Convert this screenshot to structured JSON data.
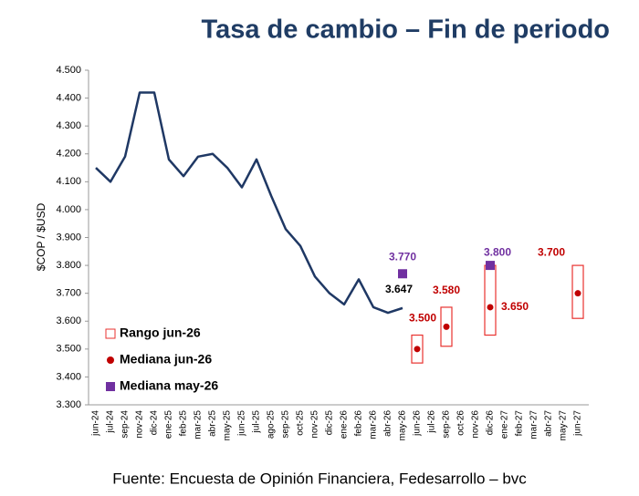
{
  "chart_data": {
    "type": "line",
    "title": "Tasa de cambio – Fin de periodo",
    "y_label": "$COP / $USD",
    "source": "Fuente: Encuesta de Opinión Financiera, Fedesarrollo – bvc",
    "categories": [
      "jun-24",
      "jul-24",
      "sep-24",
      "nov-24",
      "dic-24",
      "ene-25",
      "feb-25",
      "mar-25",
      "abr-25",
      "may-25",
      "jun-25",
      "jul-25",
      "ago-25",
      "sep-25",
      "oct-25",
      "nov-25",
      "dic-25",
      "ene-26",
      "feb-26",
      "mar-26",
      "abr-26",
      "may-26",
      "jun-26",
      "jul-26",
      "sep-26",
      "oct-26",
      "nov-26",
      "dic-26",
      "ene-27",
      "feb-27",
      "mar-27",
      "abr-27",
      "may-27",
      "jun-27"
    ],
    "ylim": [
      3300,
      4500
    ],
    "yticks": [
      {
        "value": 3300,
        "label": "3.300"
      },
      {
        "value": 3400,
        "label": "3.400"
      },
      {
        "value": 3500,
        "label": "3.500"
      },
      {
        "value": 3600,
        "label": "3.600"
      },
      {
        "value": 3700,
        "label": "3.700"
      },
      {
        "value": 3800,
        "label": "3.800"
      },
      {
        "value": 3900,
        "label": "3.900"
      },
      {
        "value": 4000,
        "label": "4.000"
      },
      {
        "value": 4100,
        "label": "4.100"
      },
      {
        "value": 4200,
        "label": "4.200"
      },
      {
        "value": 4300,
        "label": "4.300"
      },
      {
        "value": 4400,
        "label": "4.400"
      },
      {
        "value": 4500,
        "label": "4.500"
      }
    ],
    "legend": "lower left",
    "series": [
      {
        "kind": "line",
        "color": "#1f3864",
        "values": [
          4150,
          4100,
          4190,
          4420,
          4420,
          4180,
          4120,
          4190,
          4200,
          4150,
          4080,
          4180,
          4050,
          3930,
          3870,
          3760,
          3700,
          3660,
          3750,
          3650,
          3630,
          3647,
          null,
          null,
          null,
          null,
          null,
          null,
          null,
          null,
          null,
          null,
          null,
          null
        ],
        "value_labels": [
          null,
          null,
          null,
          null,
          null,
          null,
          null,
          null,
          null,
          null,
          null,
          null,
          null,
          null,
          null,
          null,
          null,
          null,
          null,
          null,
          null,
          "3.647",
          null,
          null,
          null,
          null,
          null,
          null,
          null,
          null,
          null,
          null,
          null,
          null
        ]
      },
      {
        "kind": "range",
        "name": "Rango jun-26",
        "color": "#e8322f",
        "low": [
          null,
          null,
          null,
          null,
          null,
          null,
          null,
          null,
          null,
          null,
          null,
          null,
          null,
          null,
          null,
          null,
          null,
          null,
          null,
          null,
          null,
          null,
          3450,
          null,
          3510,
          null,
          null,
          3550,
          null,
          null,
          null,
          null,
          null,
          3610
        ],
        "high": [
          null,
          null,
          null,
          null,
          null,
          null,
          null,
          null,
          null,
          null,
          null,
          null,
          null,
          null,
          null,
          null,
          null,
          null,
          null,
          null,
          null,
          null,
          3550,
          null,
          3650,
          null,
          null,
          3800,
          null,
          null,
          null,
          null,
          null,
          3800
        ]
      },
      {
        "kind": "dot",
        "name": "Mediana jun-26",
        "color": "#c00000",
        "values": [
          null,
          null,
          null,
          null,
          null,
          null,
          null,
          null,
          null,
          null,
          null,
          null,
          null,
          null,
          null,
          null,
          null,
          null,
          null,
          null,
          null,
          null,
          3500,
          null,
          3580,
          null,
          null,
          3650,
          null,
          null,
          null,
          null,
          null,
          3700
        ],
        "value_labels": [
          null,
          null,
          null,
          null,
          null,
          null,
          null,
          null,
          null,
          null,
          null,
          null,
          null,
          null,
          null,
          null,
          null,
          null,
          null,
          null,
          null,
          null,
          "3.500",
          null,
          "3.580",
          null,
          null,
          "3.650",
          null,
          null,
          null,
          null,
          null,
          "3.700"
        ]
      },
      {
        "kind": "square",
        "name": "Mediana may-26",
        "color": "#7030a0",
        "values": [
          null,
          null,
          null,
          null,
          null,
          null,
          null,
          null,
          null,
          null,
          null,
          null,
          null,
          null,
          null,
          null,
          null,
          null,
          null,
          null,
          null,
          3770,
          null,
          null,
          null,
          null,
          null,
          3800,
          null,
          null,
          null,
          null,
          null,
          null
        ],
        "value_labels": [
          null,
          null,
          null,
          null,
          null,
          null,
          null,
          null,
          null,
          null,
          null,
          null,
          null,
          null,
          null,
          null,
          null,
          null,
          null,
          null,
          null,
          "3.770",
          null,
          null,
          null,
          null,
          null,
          "3.800",
          null,
          null,
          null,
          null,
          null,
          null
        ]
      }
    ]
  }
}
